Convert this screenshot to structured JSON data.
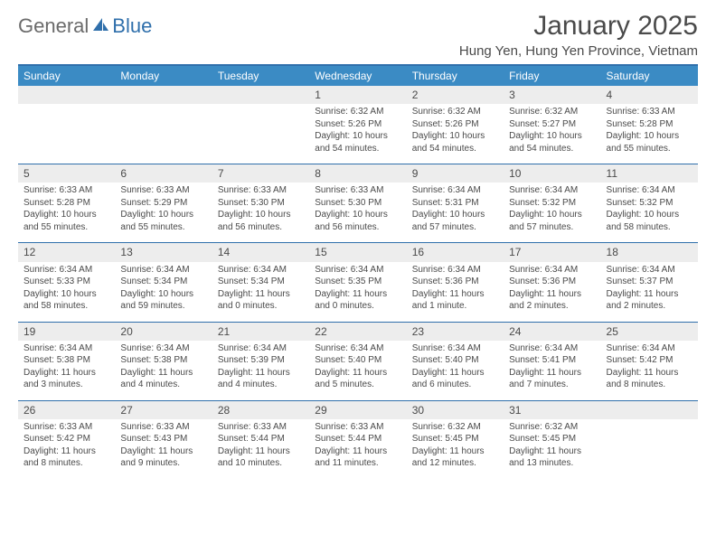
{
  "logo": {
    "general": "General",
    "blue": "Blue"
  },
  "title": "January 2025",
  "location": "Hung Yen, Hung Yen Province, Vietnam",
  "colors": {
    "header_bg": "#3b8bc4",
    "header_border": "#2f6fab",
    "row_border": "#2f6fab",
    "daynum_bg": "#ededed",
    "text": "#4a4a4a",
    "logo_gray": "#6b6b6b",
    "logo_blue": "#2f6fab"
  },
  "day_headers": [
    "Sunday",
    "Monday",
    "Tuesday",
    "Wednesday",
    "Thursday",
    "Friday",
    "Saturday"
  ],
  "weeks": [
    {
      "nums": [
        "",
        "",
        "",
        "1",
        "2",
        "3",
        "4"
      ],
      "cells": [
        {
          "sunrise": "",
          "sunset": "",
          "daylight1": "",
          "daylight2": ""
        },
        {
          "sunrise": "",
          "sunset": "",
          "daylight1": "",
          "daylight2": ""
        },
        {
          "sunrise": "",
          "sunset": "",
          "daylight1": "",
          "daylight2": ""
        },
        {
          "sunrise": "Sunrise: 6:32 AM",
          "sunset": "Sunset: 5:26 PM",
          "daylight1": "Daylight: 10 hours",
          "daylight2": "and 54 minutes."
        },
        {
          "sunrise": "Sunrise: 6:32 AM",
          "sunset": "Sunset: 5:26 PM",
          "daylight1": "Daylight: 10 hours",
          "daylight2": "and 54 minutes."
        },
        {
          "sunrise": "Sunrise: 6:32 AM",
          "sunset": "Sunset: 5:27 PM",
          "daylight1": "Daylight: 10 hours",
          "daylight2": "and 54 minutes."
        },
        {
          "sunrise": "Sunrise: 6:33 AM",
          "sunset": "Sunset: 5:28 PM",
          "daylight1": "Daylight: 10 hours",
          "daylight2": "and 55 minutes."
        }
      ]
    },
    {
      "nums": [
        "5",
        "6",
        "7",
        "8",
        "9",
        "10",
        "11"
      ],
      "cells": [
        {
          "sunrise": "Sunrise: 6:33 AM",
          "sunset": "Sunset: 5:28 PM",
          "daylight1": "Daylight: 10 hours",
          "daylight2": "and 55 minutes."
        },
        {
          "sunrise": "Sunrise: 6:33 AM",
          "sunset": "Sunset: 5:29 PM",
          "daylight1": "Daylight: 10 hours",
          "daylight2": "and 55 minutes."
        },
        {
          "sunrise": "Sunrise: 6:33 AM",
          "sunset": "Sunset: 5:30 PM",
          "daylight1": "Daylight: 10 hours",
          "daylight2": "and 56 minutes."
        },
        {
          "sunrise": "Sunrise: 6:33 AM",
          "sunset": "Sunset: 5:30 PM",
          "daylight1": "Daylight: 10 hours",
          "daylight2": "and 56 minutes."
        },
        {
          "sunrise": "Sunrise: 6:34 AM",
          "sunset": "Sunset: 5:31 PM",
          "daylight1": "Daylight: 10 hours",
          "daylight2": "and 57 minutes."
        },
        {
          "sunrise": "Sunrise: 6:34 AM",
          "sunset": "Sunset: 5:32 PM",
          "daylight1": "Daylight: 10 hours",
          "daylight2": "and 57 minutes."
        },
        {
          "sunrise": "Sunrise: 6:34 AM",
          "sunset": "Sunset: 5:32 PM",
          "daylight1": "Daylight: 10 hours",
          "daylight2": "and 58 minutes."
        }
      ]
    },
    {
      "nums": [
        "12",
        "13",
        "14",
        "15",
        "16",
        "17",
        "18"
      ],
      "cells": [
        {
          "sunrise": "Sunrise: 6:34 AM",
          "sunset": "Sunset: 5:33 PM",
          "daylight1": "Daylight: 10 hours",
          "daylight2": "and 58 minutes."
        },
        {
          "sunrise": "Sunrise: 6:34 AM",
          "sunset": "Sunset: 5:34 PM",
          "daylight1": "Daylight: 10 hours",
          "daylight2": "and 59 minutes."
        },
        {
          "sunrise": "Sunrise: 6:34 AM",
          "sunset": "Sunset: 5:34 PM",
          "daylight1": "Daylight: 11 hours",
          "daylight2": "and 0 minutes."
        },
        {
          "sunrise": "Sunrise: 6:34 AM",
          "sunset": "Sunset: 5:35 PM",
          "daylight1": "Daylight: 11 hours",
          "daylight2": "and 0 minutes."
        },
        {
          "sunrise": "Sunrise: 6:34 AM",
          "sunset": "Sunset: 5:36 PM",
          "daylight1": "Daylight: 11 hours",
          "daylight2": "and 1 minute."
        },
        {
          "sunrise": "Sunrise: 6:34 AM",
          "sunset": "Sunset: 5:36 PM",
          "daylight1": "Daylight: 11 hours",
          "daylight2": "and 2 minutes."
        },
        {
          "sunrise": "Sunrise: 6:34 AM",
          "sunset": "Sunset: 5:37 PM",
          "daylight1": "Daylight: 11 hours",
          "daylight2": "and 2 minutes."
        }
      ]
    },
    {
      "nums": [
        "19",
        "20",
        "21",
        "22",
        "23",
        "24",
        "25"
      ],
      "cells": [
        {
          "sunrise": "Sunrise: 6:34 AM",
          "sunset": "Sunset: 5:38 PM",
          "daylight1": "Daylight: 11 hours",
          "daylight2": "and 3 minutes."
        },
        {
          "sunrise": "Sunrise: 6:34 AM",
          "sunset": "Sunset: 5:38 PM",
          "daylight1": "Daylight: 11 hours",
          "daylight2": "and 4 minutes."
        },
        {
          "sunrise": "Sunrise: 6:34 AM",
          "sunset": "Sunset: 5:39 PM",
          "daylight1": "Daylight: 11 hours",
          "daylight2": "and 4 minutes."
        },
        {
          "sunrise": "Sunrise: 6:34 AM",
          "sunset": "Sunset: 5:40 PM",
          "daylight1": "Daylight: 11 hours",
          "daylight2": "and 5 minutes."
        },
        {
          "sunrise": "Sunrise: 6:34 AM",
          "sunset": "Sunset: 5:40 PM",
          "daylight1": "Daylight: 11 hours",
          "daylight2": "and 6 minutes."
        },
        {
          "sunrise": "Sunrise: 6:34 AM",
          "sunset": "Sunset: 5:41 PM",
          "daylight1": "Daylight: 11 hours",
          "daylight2": "and 7 minutes."
        },
        {
          "sunrise": "Sunrise: 6:34 AM",
          "sunset": "Sunset: 5:42 PM",
          "daylight1": "Daylight: 11 hours",
          "daylight2": "and 8 minutes."
        }
      ]
    },
    {
      "nums": [
        "26",
        "27",
        "28",
        "29",
        "30",
        "31",
        ""
      ],
      "cells": [
        {
          "sunrise": "Sunrise: 6:33 AM",
          "sunset": "Sunset: 5:42 PM",
          "daylight1": "Daylight: 11 hours",
          "daylight2": "and 8 minutes."
        },
        {
          "sunrise": "Sunrise: 6:33 AM",
          "sunset": "Sunset: 5:43 PM",
          "daylight1": "Daylight: 11 hours",
          "daylight2": "and 9 minutes."
        },
        {
          "sunrise": "Sunrise: 6:33 AM",
          "sunset": "Sunset: 5:44 PM",
          "daylight1": "Daylight: 11 hours",
          "daylight2": "and 10 minutes."
        },
        {
          "sunrise": "Sunrise: 6:33 AM",
          "sunset": "Sunset: 5:44 PM",
          "daylight1": "Daylight: 11 hours",
          "daylight2": "and 11 minutes."
        },
        {
          "sunrise": "Sunrise: 6:32 AM",
          "sunset": "Sunset: 5:45 PM",
          "daylight1": "Daylight: 11 hours",
          "daylight2": "and 12 minutes."
        },
        {
          "sunrise": "Sunrise: 6:32 AM",
          "sunset": "Sunset: 5:45 PM",
          "daylight1": "Daylight: 11 hours",
          "daylight2": "and 13 minutes."
        },
        {
          "sunrise": "",
          "sunset": "",
          "daylight1": "",
          "daylight2": ""
        }
      ]
    }
  ]
}
